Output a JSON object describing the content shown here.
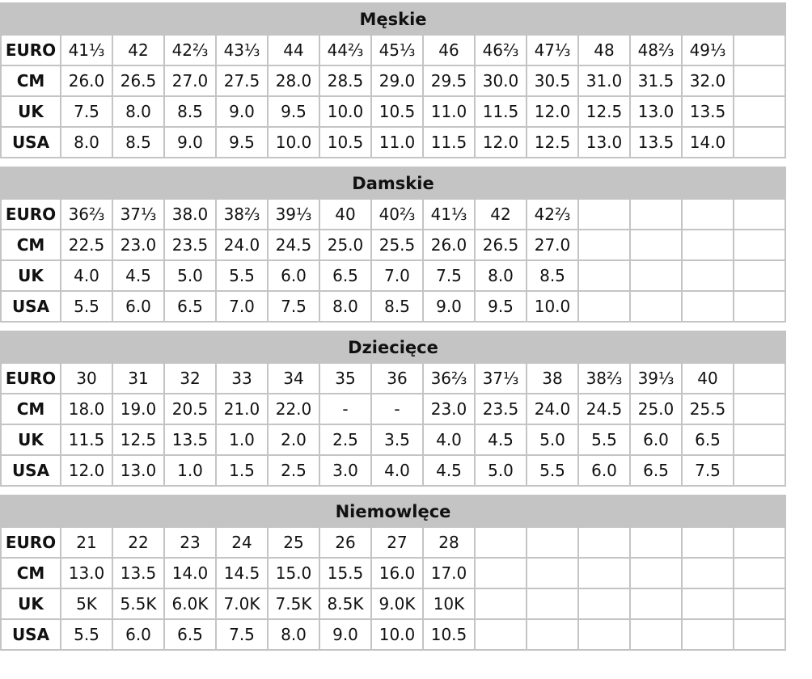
{
  "sections": [
    {
      "title": "Męskie",
      "rows": [
        {
          "label": "EURO",
          "values": [
            "41⅓",
            "42",
            "42⅔",
            "43⅓",
            "44",
            "44⅔",
            "45⅓",
            "46",
            "46⅔",
            "47⅓",
            "48",
            "48⅔",
            "49⅓",
            ""
          ]
        },
        {
          "label": "CM",
          "values": [
            "26.0",
            "26.5",
            "27.0",
            "27.5",
            "28.0",
            "28.5",
            "29.0",
            "29.5",
            "30.0",
            "30.5",
            "31.0",
            "31.5",
            "32.0",
            ""
          ]
        },
        {
          "label": "UK",
          "values": [
            "7.5",
            "8.0",
            "8.5",
            "9.0",
            "9.5",
            "10.0",
            "10.5",
            "11.0",
            "11.5",
            "12.0",
            "12.5",
            "13.0",
            "13.5",
            ""
          ]
        },
        {
          "label": "USA",
          "values": [
            "8.0",
            "8.5",
            "9.0",
            "9.5",
            "10.0",
            "10.5",
            "11.0",
            "11.5",
            "12.0",
            "12.5",
            "13.0",
            "13.5",
            "14.0",
            ""
          ]
        }
      ]
    },
    {
      "title": "Damskie",
      "rows": [
        {
          "label": "EURO",
          "values": [
            "36⅔",
            "37⅓",
            "38.0",
            "38⅔",
            "39⅓",
            "40",
            "40⅔",
            "41⅓",
            "42",
            "42⅔",
            "",
            "",
            "",
            ""
          ]
        },
        {
          "label": "CM",
          "values": [
            "22.5",
            "23.0",
            "23.5",
            "24.0",
            "24.5",
            "25.0",
            "25.5",
            "26.0",
            "26.5",
            "27.0",
            "",
            "",
            "",
            ""
          ]
        },
        {
          "label": "UK",
          "values": [
            "4.0",
            "4.5",
            "5.0",
            "5.5",
            "6.0",
            "6.5",
            "7.0",
            "7.5",
            "8.0",
            "8.5",
            "",
            "",
            "",
            ""
          ]
        },
        {
          "label": "USA",
          "values": [
            "5.5",
            "6.0",
            "6.5",
            "7.0",
            "7.5",
            "8.0",
            "8.5",
            "9.0",
            "9.5",
            "10.0",
            "",
            "",
            "",
            ""
          ]
        }
      ]
    },
    {
      "title": "Dziecięce",
      "rows": [
        {
          "label": "EURO",
          "values": [
            "30",
            "31",
            "32",
            "33",
            "34",
            "35",
            "36",
            "36⅔",
            "37⅓",
            "38",
            "38⅔",
            "39⅓",
            "40",
            ""
          ]
        },
        {
          "label": "CM",
          "values": [
            "18.0",
            "19.0",
            "20.5",
            "21.0",
            "22.0",
            "-",
            "-",
            "23.0",
            "23.5",
            "24.0",
            "24.5",
            "25.0",
            "25.5",
            ""
          ]
        },
        {
          "label": "UK",
          "values": [
            "11.5",
            "12.5",
            "13.5",
            "1.0",
            "2.0",
            "2.5",
            "3.5",
            "4.0",
            "4.5",
            "5.0",
            "5.5",
            "6.0",
            "6.5",
            ""
          ]
        },
        {
          "label": "USA",
          "values": [
            "12.0",
            "13.0",
            "1.0",
            "1.5",
            "2.5",
            "3.0",
            "4.0",
            "4.5",
            "5.0",
            "5.5",
            "6.0",
            "6.5",
            "7.5",
            ""
          ]
        }
      ]
    },
    {
      "title": "Niemowlęce",
      "rows": [
        {
          "label": "EURO",
          "values": [
            "21",
            "22",
            "23",
            "24",
            "25",
            "26",
            "27",
            "28",
            "",
            "",
            "",
            "",
            "",
            ""
          ]
        },
        {
          "label": "CM",
          "values": [
            "13.0",
            "13.5",
            "14.0",
            "14.5",
            "15.0",
            "15.5",
            "16.0",
            "17.0",
            "",
            "",
            "",
            "",
            "",
            ""
          ]
        },
        {
          "label": "UK",
          "values": [
            "5K",
            "5.5K",
            "6.0K",
            "7.0K",
            "7.5K",
            "8.5K",
            "9.0K",
            "10K",
            "",
            "",
            "",
            "",
            "",
            ""
          ]
        },
        {
          "label": "USA",
          "values": [
            "5.5",
            "6.0",
            "6.5",
            "7.5",
            "8.0",
            "9.0",
            "10.0",
            "10.5",
            "",
            "",
            "",
            "",
            "",
            ""
          ]
        }
      ]
    }
  ]
}
